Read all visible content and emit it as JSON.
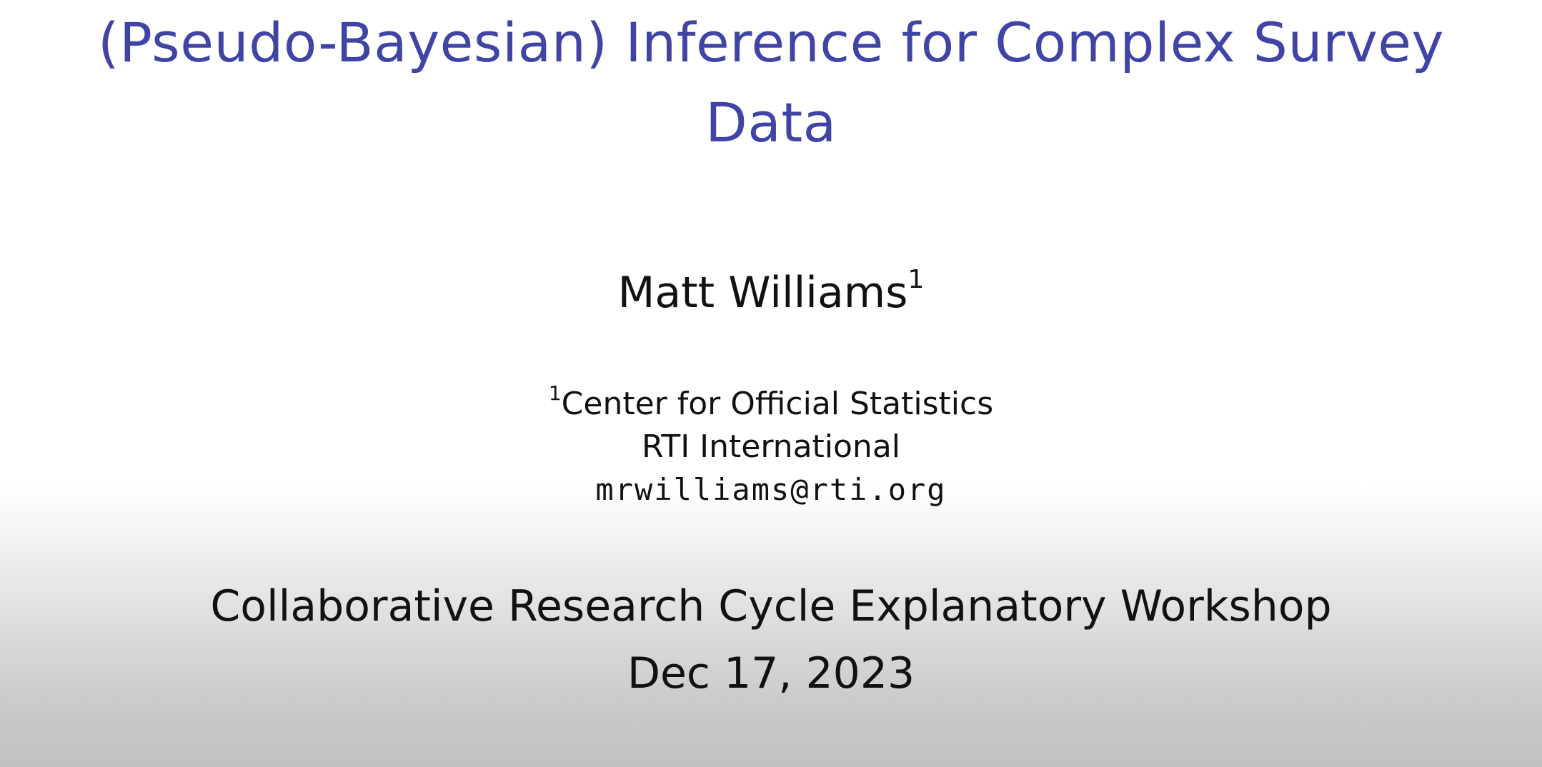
{
  "slide": {
    "title_line1": "(Pseudo-Bayesian) Inference for Complex Survey",
    "title_line2": "Data",
    "author_name": "Matt Williams",
    "author_sup": "1",
    "affiliation_sup": "1",
    "affiliation_line1": "Center for Official Statistics",
    "affiliation_line2": "RTI International",
    "email": "mrwilliams@rti.org",
    "event": "Collaborative Research Cycle Explanatory Workshop",
    "date": "Dec 17, 2023"
  },
  "colors": {
    "title": "#4044a4",
    "text": "#111111",
    "background_top": "#ffffff",
    "background_bottom": "#c2c2c2"
  }
}
